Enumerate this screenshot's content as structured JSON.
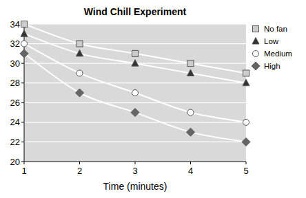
{
  "chart_data": {
    "type": "line",
    "title": "Wind Chill Experiment",
    "x_label": "Time (minutes)",
    "x": [
      1,
      2,
      3,
      4,
      5
    ],
    "series": [
      {
        "name": "No fan",
        "color": "#cccccc",
        "marker": "square",
        "values": [
          34,
          32,
          31,
          30,
          29
        ]
      },
      {
        "name": "Low",
        "color": "#333333",
        "marker": "triangle",
        "values": [
          33,
          31,
          30,
          29,
          28
        ]
      },
      {
        "name": "Medium",
        "color": "#ffffff",
        "marker": "circle",
        "values": [
          32,
          29,
          27,
          25,
          24
        ]
      },
      {
        "name": "High",
        "color": "#666666",
        "marker": "diamond",
        "values": [
          31,
          27,
          25,
          23,
          22
        ]
      }
    ],
    "xlim": [
      1,
      5
    ],
    "xticks": [
      1,
      2,
      3,
      4,
      5
    ],
    "ylim": [
      20,
      34
    ],
    "yticks": [
      20,
      22,
      24,
      26,
      28,
      30,
      32,
      34
    ],
    "grid": true,
    "legend": "right"
  }
}
